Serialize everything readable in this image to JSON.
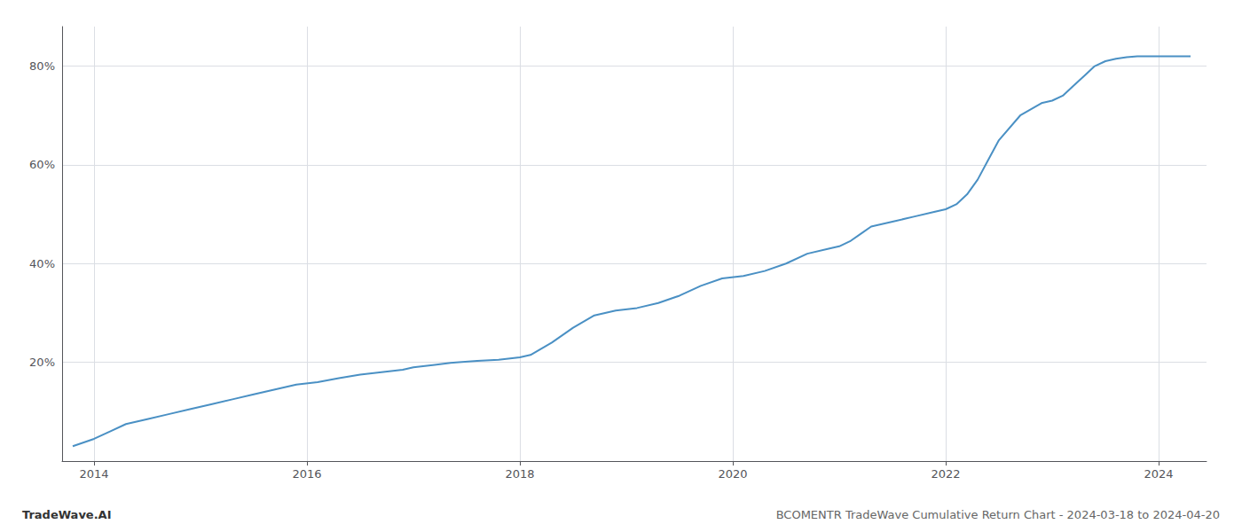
{
  "chart_data": {
    "type": "line",
    "title": "BCOMENTR TradeWave Cumulative Return Chart - 2024-03-18 to 2024-04-20",
    "annotations": [
      "TradeWave.AI"
    ],
    "color": "#4a90c4",
    "x": [
      2013.8,
      2014.0,
      2014.15,
      2014.3,
      2014.5,
      2014.7,
      2014.9,
      2015.1,
      2015.3,
      2015.5,
      2015.7,
      2015.9,
      2016.1,
      2016.3,
      2016.5,
      2016.7,
      2016.9,
      2017.0,
      2017.2,
      2017.4,
      2017.6,
      2017.8,
      2018.0,
      2018.1,
      2018.3,
      2018.5,
      2018.7,
      2018.9,
      2019.1,
      2019.3,
      2019.5,
      2019.7,
      2019.9,
      2020.1,
      2020.3,
      2020.5,
      2020.7,
      2020.9,
      2021.0,
      2021.1,
      2021.2,
      2021.3,
      2021.5,
      2021.7,
      2021.9,
      2022.0,
      2022.1,
      2022.2,
      2022.3,
      2022.4,
      2022.5,
      2022.7,
      2022.9,
      2023.0,
      2023.1,
      2023.2,
      2023.3,
      2023.4,
      2023.5,
      2023.6,
      2023.7,
      2023.8,
      2023.9,
      2024.0,
      2024.1,
      2024.2,
      2024.3
    ],
    "values": [
      3.0,
      4.5,
      6.0,
      7.5,
      8.5,
      9.5,
      10.5,
      11.5,
      12.5,
      13.5,
      14.5,
      15.5,
      16.0,
      16.8,
      17.5,
      18.0,
      18.5,
      19.0,
      19.5,
      20.0,
      20.3,
      20.5,
      21.0,
      21.5,
      24.0,
      27.0,
      29.5,
      30.5,
      31.0,
      32.0,
      33.5,
      35.5,
      37.0,
      37.5,
      38.5,
      40.0,
      42.0,
      43.0,
      43.5,
      44.5,
      46.0,
      47.5,
      48.5,
      49.5,
      50.5,
      51.0,
      52.0,
      54.0,
      57.0,
      61.0,
      65.0,
      70.0,
      72.5,
      73.0,
      74.0,
      76.0,
      78.0,
      80.0,
      81.0,
      81.5,
      81.8,
      82.0,
      82.0,
      82.0,
      82.0,
      82.0,
      82.0
    ],
    "xlim": [
      2013.7,
      2024.45
    ],
    "xticks": [
      2014,
      2016,
      2018,
      2020,
      2022,
      2024
    ],
    "ylim": [
      0,
      88
    ],
    "yticks": [
      {
        "value": 20,
        "label": "20%"
      },
      {
        "value": 40,
        "label": "40%"
      },
      {
        "value": 60,
        "label": "60%"
      },
      {
        "value": 80,
        "label": "80%"
      }
    ],
    "grid": true
  }
}
